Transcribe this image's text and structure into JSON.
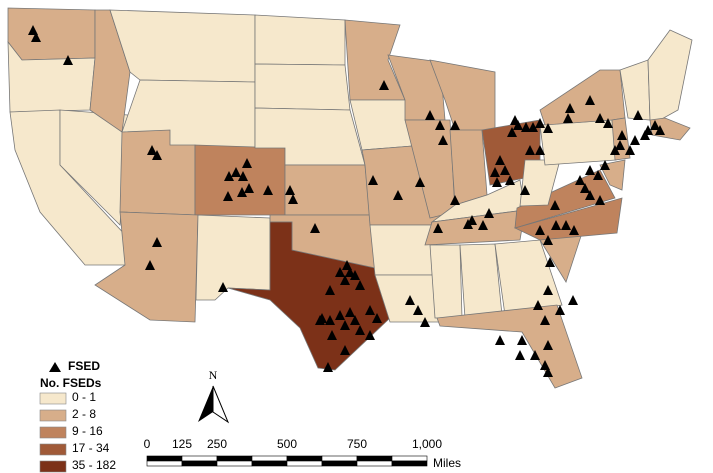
{
  "legend": {
    "marker_label": "FSED",
    "title": "No. FSEDs",
    "classes": [
      {
        "label": "0 - 1",
        "color": "#f6e8cc"
      },
      {
        "label": "2 - 8",
        "color": "#d7ae8a"
      },
      {
        "label": "9 - 16",
        "color": "#bf835d"
      },
      {
        "label": "17 - 34",
        "color": "#a05a38"
      },
      {
        "label": "35 - 182",
        "color": "#7c3118"
      }
    ]
  },
  "north_arrow": "N",
  "scale_bar": {
    "labels": [
      "0",
      "125",
      "250",
      "500",
      "750",
      "1,000"
    ],
    "unit": "Miles"
  }
}
